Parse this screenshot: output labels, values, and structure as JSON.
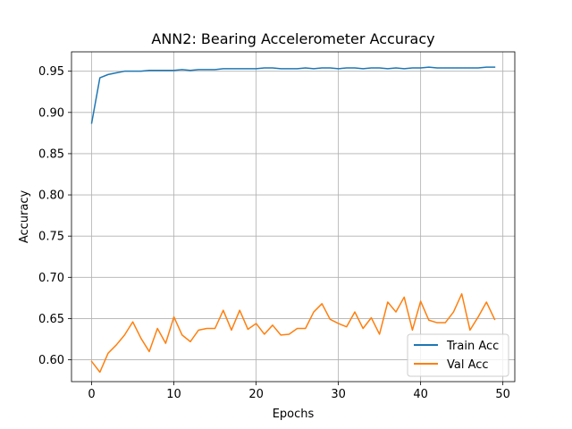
{
  "chart_data": {
    "type": "line",
    "title": "ANN2: Bearing Accelerometer Accuracy",
    "xlabel": "Epochs",
    "ylabel": "Accuracy",
    "xlim": [
      -2.45,
      51.45
    ],
    "ylim": [
      0.5735,
      0.9735
    ],
    "xticks": [
      0,
      10,
      20,
      30,
      40,
      50
    ],
    "yticks": [
      0.6,
      0.65,
      0.7,
      0.75,
      0.8,
      0.85,
      0.9,
      0.95
    ],
    "xtick_labels": [
      "0",
      "10",
      "20",
      "30",
      "40",
      "50"
    ],
    "ytick_labels": [
      "0.60",
      "0.65",
      "0.70",
      "0.75",
      "0.80",
      "0.85",
      "0.90",
      "0.95"
    ],
    "grid": true,
    "legend_position": "lower-right",
    "x": [
      0,
      1,
      2,
      3,
      4,
      5,
      6,
      7,
      8,
      9,
      10,
      11,
      12,
      13,
      14,
      15,
      16,
      17,
      18,
      19,
      20,
      21,
      22,
      23,
      24,
      25,
      26,
      27,
      28,
      29,
      30,
      31,
      32,
      33,
      34,
      35,
      36,
      37,
      38,
      39,
      40,
      41,
      42,
      43,
      44,
      45,
      46,
      47,
      48,
      49
    ],
    "series": [
      {
        "name": "Train Acc",
        "color": "#1f77b4",
        "values": [
          0.887,
          0.942,
          0.946,
          0.948,
          0.95,
          0.95,
          0.95,
          0.951,
          0.951,
          0.951,
          0.951,
          0.952,
          0.951,
          0.952,
          0.952,
          0.952,
          0.953,
          0.953,
          0.953,
          0.953,
          0.953,
          0.954,
          0.954,
          0.953,
          0.953,
          0.953,
          0.954,
          0.953,
          0.954,
          0.954,
          0.953,
          0.954,
          0.954,
          0.953,
          0.954,
          0.954,
          0.953,
          0.954,
          0.953,
          0.954,
          0.954,
          0.955,
          0.954,
          0.954,
          0.954,
          0.954,
          0.954,
          0.954,
          0.955,
          0.955
        ]
      },
      {
        "name": "Val Acc",
        "color": "#ff7f0e",
        "values": [
          0.598,
          0.585,
          0.608,
          0.618,
          0.63,
          0.646,
          0.626,
          0.61,
          0.638,
          0.62,
          0.652,
          0.63,
          0.622,
          0.636,
          0.638,
          0.638,
          0.66,
          0.636,
          0.66,
          0.637,
          0.644,
          0.631,
          0.642,
          0.63,
          0.631,
          0.638,
          0.638,
          0.658,
          0.668,
          0.649,
          0.644,
          0.64,
          0.658,
          0.638,
          0.651,
          0.631,
          0.67,
          0.658,
          0.676,
          0.636,
          0.671,
          0.648,
          0.645,
          0.645,
          0.658,
          0.68,
          0.636,
          0.652,
          0.67,
          0.649
        ]
      }
    ]
  }
}
